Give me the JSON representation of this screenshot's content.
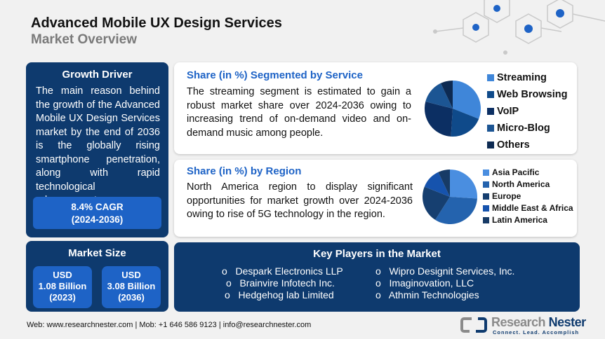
{
  "header": {
    "title": "Advanced Mobile UX Design Services",
    "subtitle": "Market Overview"
  },
  "growth_driver": {
    "heading": "Growth Driver",
    "text": "The main reason behind the growth of the Advanced Mobile UX Design Services market by the end of 2036 is the globally rising smartphone penetration, along with rapid technological advancement.",
    "cagr": "8.4% CAGR",
    "cagr_period": "(2024-2036)"
  },
  "market_size": {
    "heading": "Market Size",
    "boxes": [
      {
        "currency": "USD",
        "value": "1.08 Billion",
        "year": "(2023)"
      },
      {
        "currency": "USD",
        "value": "3.08 Billion",
        "year": "(2036)"
      }
    ]
  },
  "service": {
    "title": "Share (in %) Segmented by Service",
    "text": "The streaming segment is estimated to gain a robust market share over 2024-2036 owing to increasing trend of on-demand video and on-demand music among people."
  },
  "region": {
    "title": "Share (in %) by Region",
    "text": "North America region to display significant opportunities for market growth over 2024-2036 owing to rise of 5G technology in the region."
  },
  "chart_data": [
    {
      "type": "pie",
      "categories": [
        "Streaming",
        "Web Browsing",
        "VoIP",
        "Micro-Blog",
        "Others"
      ],
      "values": [
        31,
        20,
        28,
        14,
        7
      ],
      "colors": [
        "#3f86d9",
        "#0f4a8a",
        "#0c2f63",
        "#1c5593",
        "#0d2a52"
      ],
      "legend": "right"
    },
    {
      "type": "pie",
      "categories": [
        "Asia Pacific",
        "North America",
        "Europe",
        "Middle East & Africa",
        "Latin America"
      ],
      "values": [
        26,
        33,
        22,
        12,
        7
      ],
      "colors": [
        "#4a8ee0",
        "#2463ae",
        "#163f70",
        "#1653ad",
        "#173b66"
      ],
      "legend": "right"
    }
  ],
  "key_players": {
    "heading": "Key Players in the Market",
    "left": [
      "Despark Electronics LLP",
      "Brainvire Infotech Inc.",
      "Hedgehog lab Limited"
    ],
    "right": [
      "Wipro Designit Services, Inc.",
      "Imaginovation, LLC",
      "Athmin Technologies"
    ],
    "bullet": "o"
  },
  "footer": {
    "text": "Web: www.researchnester.com | Mob: +1 646 586 9123 | info@researchnester.com"
  },
  "logo": {
    "name_a": "Research",
    "name_b": "Nester",
    "tagline": "Connect. Lead. Accomplish"
  }
}
